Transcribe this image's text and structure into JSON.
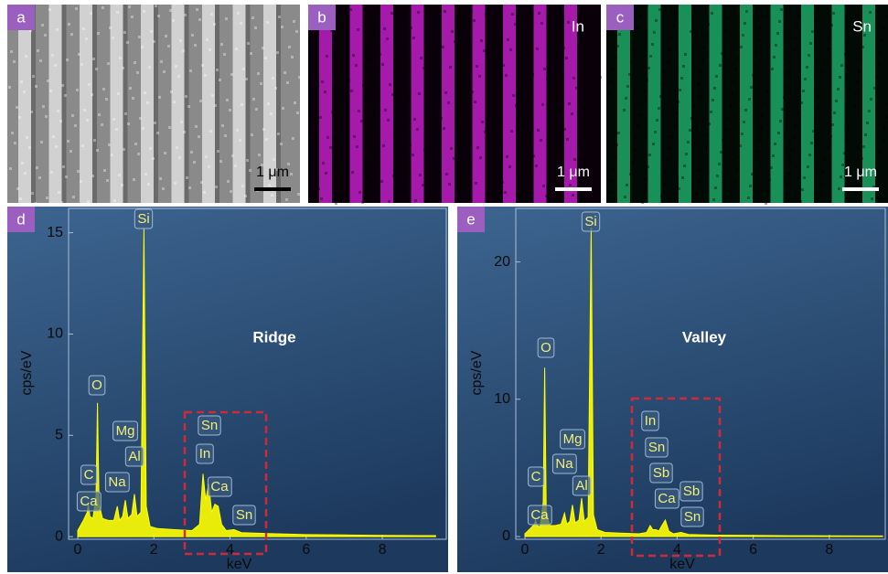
{
  "panels": [
    {
      "label": "a",
      "scale_bar": "1 μm"
    },
    {
      "label": "b",
      "element": "In",
      "scale_bar": "1 μm"
    },
    {
      "label": "c",
      "element": "Sn",
      "scale_bar": "1 μm"
    }
  ],
  "chart_data": [
    {
      "type": "area",
      "panel_label": "d",
      "title": "Ridge",
      "xlabel": "keV",
      "ylabel": "cps/eV",
      "color": "#ffff00",
      "x": [
        0,
        0.15,
        0.25,
        0.28,
        0.32,
        0.4,
        0.48,
        0.52,
        0.56,
        0.65,
        0.8,
        0.95,
        1.04,
        1.1,
        1.18,
        1.25,
        1.32,
        1.42,
        1.49,
        1.56,
        1.66,
        1.74,
        1.8,
        1.9,
        2.1,
        2.5,
        3.0,
        3.2,
        3.29,
        3.36,
        3.44,
        3.52,
        3.6,
        3.69,
        3.78,
        3.9,
        4.1,
        4.3,
        5,
        6,
        7,
        8,
        9,
        9.4
      ],
      "values": [
        0.3,
        0.8,
        1.2,
        1.6,
        1.0,
        0.9,
        2.0,
        6.6,
        1.6,
        0.9,
        0.8,
        0.8,
        1.5,
        0.8,
        1.0,
        1.8,
        0.9,
        1.1,
        2.1,
        1.0,
        1.2,
        15.2,
        1.5,
        0.5,
        0.4,
        0.35,
        0.3,
        0.6,
        3.1,
        1.8,
        2.6,
        1.2,
        1.6,
        1.5,
        0.6,
        0.3,
        0.35,
        0.2,
        0.15,
        0.1,
        0.08,
        0.06,
        0.05,
        0.05
      ],
      "xlim": [
        -0.24,
        9.68
      ],
      "ylim": [
        -0.13,
        16.2
      ],
      "xticks": [
        0,
        2,
        4,
        6,
        8
      ],
      "yticks": [
        0,
        5,
        10,
        15
      ],
      "annotations": [
        "C",
        "Ca",
        "O",
        "Na",
        "Mg",
        "Al",
        "Si",
        "Sn",
        "In",
        "Ca",
        "Sn"
      ]
    },
    {
      "type": "area",
      "panel_label": "e",
      "title": "Valley",
      "xlabel": "keV",
      "ylabel": "cps/eV",
      "color": "#ffff00",
      "x": [
        0,
        0.15,
        0.25,
        0.28,
        0.32,
        0.4,
        0.48,
        0.52,
        0.56,
        0.65,
        0.8,
        0.95,
        1.04,
        1.1,
        1.18,
        1.25,
        1.32,
        1.42,
        1.49,
        1.56,
        1.66,
        1.74,
        1.8,
        1.9,
        2.1,
        2.5,
        3.0,
        3.2,
        3.29,
        3.36,
        3.44,
        3.52,
        3.6,
        3.69,
        3.78,
        3.9,
        4.1,
        4.3,
        5,
        6,
        7,
        8,
        9,
        9.4
      ],
      "values": [
        0.2,
        0.6,
        0.9,
        1.2,
        0.8,
        0.7,
        2.5,
        12.3,
        1.8,
        0.8,
        0.8,
        0.9,
        1.7,
        0.9,
        1.1,
        2.3,
        1.0,
        1.2,
        2.8,
        1.1,
        1.4,
        22.5,
        1.6,
        0.5,
        0.3,
        0.25,
        0.2,
        0.3,
        0.8,
        0.5,
        0.5,
        0.4,
        0.8,
        1.2,
        0.4,
        0.2,
        0.3,
        0.15,
        0.1,
        0.08,
        0.06,
        0.05,
        0.04,
        0.04
      ],
      "xlim": [
        -0.24,
        9.47
      ],
      "ylim": [
        -0.2,
        23.9
      ],
      "xticks": [
        0,
        2,
        4,
        6,
        8
      ],
      "yticks": [
        0,
        10,
        20
      ],
      "annotations": [
        "C",
        "Ca",
        "O",
        "Na",
        "Mg",
        "Al",
        "Si",
        "In",
        "Sn",
        "Sb",
        "Ca",
        "Sb",
        "Sn"
      ]
    }
  ]
}
